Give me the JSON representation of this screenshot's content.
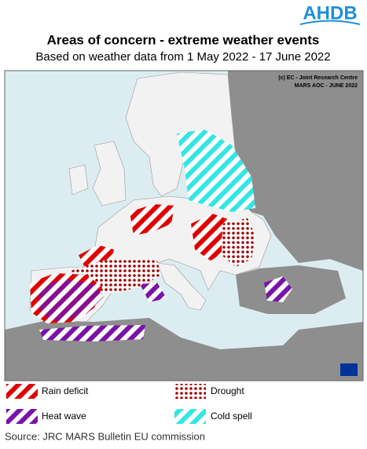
{
  "header": {
    "logo": "AHDB",
    "title": "Areas of concern - extreme weather events",
    "subtitle": "Based on weather data from 1 May 2022 - 17 June 2022"
  },
  "map": {
    "credit": "(c) EC - Joint Research Centre",
    "code": "MARS AOC - JUNE 2022"
  },
  "legend": {
    "items": [
      "Rain deficit",
      "Drought",
      "Heat wave",
      "Cold spell"
    ]
  },
  "footer": {
    "source": "Source: JRC MARS Bulletin EU commission"
  }
}
